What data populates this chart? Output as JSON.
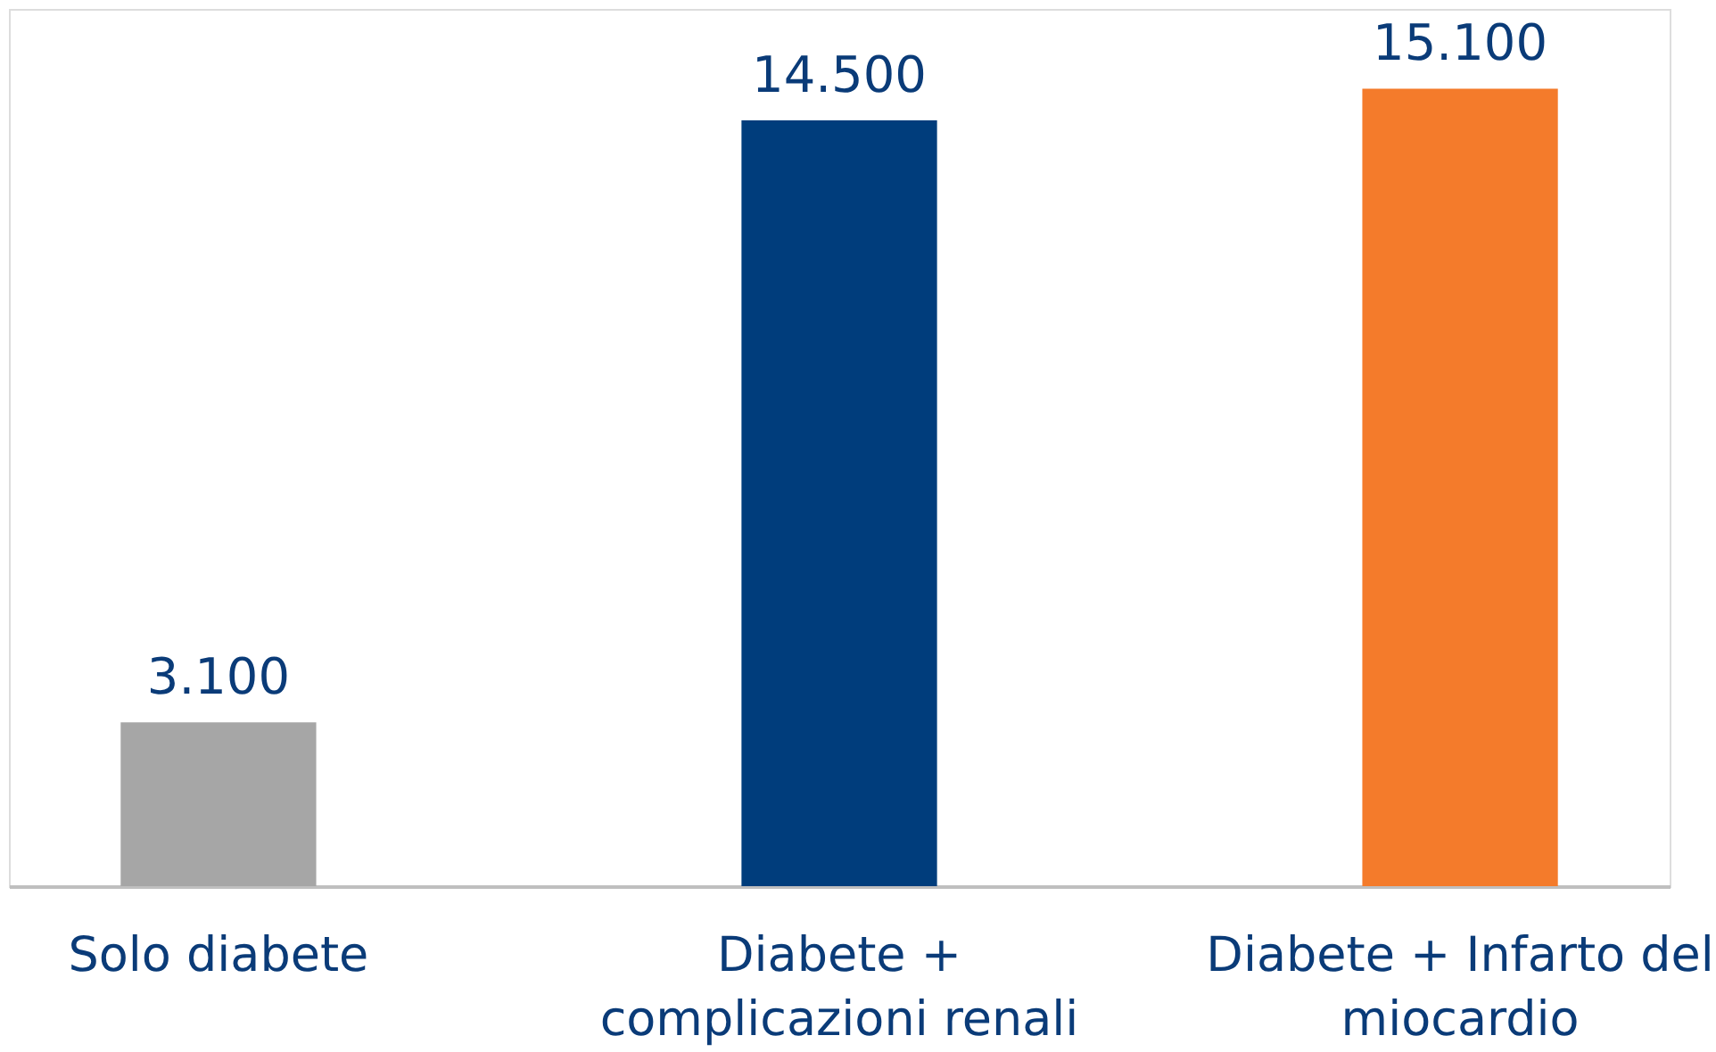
{
  "chart_data": {
    "type": "bar",
    "categories": [
      "Solo diabete",
      "Diabete + complicazioni renali",
      "Diabete + Infarto del miocardio"
    ],
    "values": [
      3100,
      14500,
      15100
    ],
    "colors": [
      "#a6a6a6",
      "#003d7c",
      "#f47b2b"
    ],
    "value_labels": [
      "3.100",
      "14.500",
      "15.100"
    ]
  }
}
